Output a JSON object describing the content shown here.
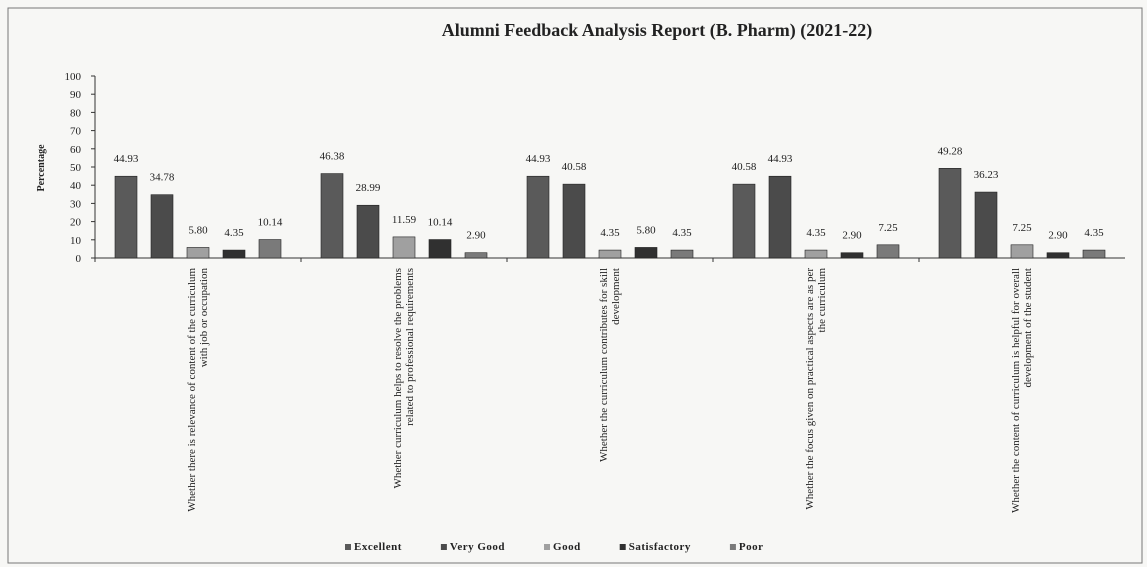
{
  "chart_data": {
    "type": "bar",
    "title": "Alumni  Feedback Analysis  Report  (B. Pharm) (2021-22)",
    "y_label": "Percentage",
    "categories": [
      "Whether there is relevance of content of the curriculum with job or occupation",
      "Whether curriculum helps to resolve the problems related to professional requirements",
      "Whether the curriculum contributes for skill development",
      "Whether the focus given on practical aspects are as per the curriculum",
      "Whether the content of curriculum is helpful for overall development of the student"
    ],
    "series": [
      {
        "name": "Excellent",
        "color": "#5a5a5a",
        "values": [
          44.93,
          46.38,
          44.93,
          40.58,
          49.28
        ],
        "value_labels": [
          "44.93",
          "46.38",
          "44.93",
          "40.58",
          "49.28"
        ]
      },
      {
        "name": "Very Good",
        "color": "#4b4b4b",
        "values": [
          34.78,
          28.99,
          40.58,
          44.93,
          36.23
        ],
        "value_labels": [
          "34.78",
          "28.99",
          "40.58",
          "44.93",
          "36.23"
        ]
      },
      {
        "name": "Good",
        "color": "#a0a0a0",
        "values": [
          5.8,
          11.59,
          4.35,
          4.35,
          7.25
        ],
        "value_labels": [
          "5.80",
          "11.59",
          "4.35",
          "4.35",
          "7.25"
        ]
      },
      {
        "name": "Satisfactory",
        "color": "#303030",
        "values": [
          4.35,
          10.14,
          5.8,
          2.9,
          2.9
        ],
        "value_labels": [
          "4.35",
          "10.14",
          "5.80",
          "2.90",
          "2.90"
        ]
      },
      {
        "name": "Poor",
        "color": "#7a7a7a",
        "values": [
          10.14,
          2.9,
          4.35,
          7.25,
          4.35
        ],
        "value_labels": [
          "10.14",
          "2.90",
          "4.35",
          "7.25",
          "4.35"
        ]
      }
    ],
    "ylim": [
      0,
      100
    ],
    "yticks": [
      0,
      10,
      20,
      30,
      40,
      50,
      60,
      70,
      80,
      90,
      100
    ],
    "grid": false,
    "legend": "bottom"
  }
}
